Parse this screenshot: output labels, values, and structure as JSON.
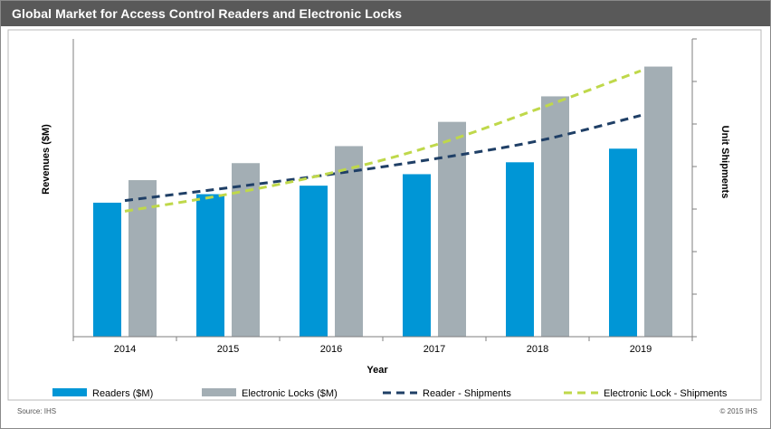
{
  "title": "Global Market for Access Control Readers and Electronic Locks",
  "chart_data": {
    "type": "bar",
    "title": "Global Market for Access Control Readers and Electronic Locks",
    "xlabel": "Year",
    "ylabel": "Revenues ($M)",
    "y2label": "Unit Shipments",
    "categories": [
      "2014",
      "2015",
      "2016",
      "2017",
      "2018",
      "2019"
    ],
    "ylim": [
      0,
      7
    ],
    "y2lim": [
      0,
      7
    ],
    "grid": false,
    "legend_position": "bottom",
    "series": [
      {
        "name": "Readers ($M)",
        "kind": "bar",
        "axis": "left",
        "color": "#0096d6",
        "values": [
          3.15,
          3.35,
          3.55,
          3.82,
          4.1,
          4.42
        ]
      },
      {
        "name": "Electronic Locks ($M)",
        "kind": "bar",
        "axis": "left",
        "color": "#a3aeb4",
        "values": [
          3.68,
          4.08,
          4.48,
          5.05,
          5.65,
          6.35
        ]
      },
      {
        "name": "Reader - Shipments",
        "kind": "line",
        "style": "dashed",
        "axis": "right",
        "color": "#1f3f66",
        "values": [
          3.2,
          3.5,
          3.82,
          4.18,
          4.6,
          5.2
        ]
      },
      {
        "name": "Electronic Lock - Shipments",
        "kind": "line",
        "style": "dashed",
        "axis": "right",
        "color": "#bfd84a",
        "values": [
          2.95,
          3.35,
          3.85,
          4.5,
          5.35,
          6.25
        ]
      }
    ]
  },
  "footer": {
    "source": "Source:   IHS",
    "copyright": "© 2015  IHS"
  }
}
